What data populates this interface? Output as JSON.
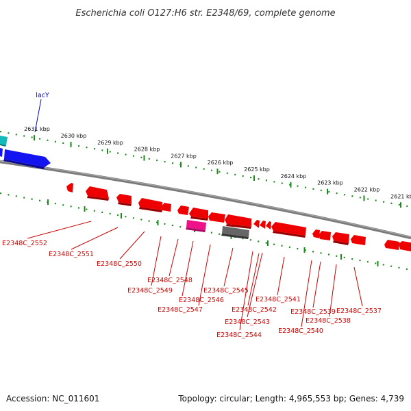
{
  "title": "Escherichia coli O127:H6 str. E2348/69, complete genome",
  "footer": {
    "accession": "Accession: NC_011601",
    "summary": "Topology: circular; Length: 4,965,553 bp; Genes: 4,739"
  },
  "colors": {
    "forward_gene": "#1010ee",
    "reverse_gene": "#ee0000",
    "rna_gene": "#ee1188",
    "pseudo_gene": "#555555",
    "other_gene": "#11bbbb",
    "tick": "#1a8a1a",
    "backbone": "#808080",
    "label_forward": "#0000cc",
    "label_reverse": "#cc0000"
  },
  "ruler": {
    "unit": "kbp",
    "ticks": [
      {
        "kbp": 2631,
        "label": "2631 kbp"
      },
      {
        "kbp": 2630,
        "label": "2630 kbp"
      },
      {
        "kbp": 2629,
        "label": "2629 kbp"
      },
      {
        "kbp": 2628,
        "label": "2628 kbp"
      },
      {
        "kbp": 2627,
        "label": "2627 kbp"
      },
      {
        "kbp": 2626,
        "label": "2626 kbp"
      },
      {
        "kbp": 2625,
        "label": "2625 kbp"
      },
      {
        "kbp": 2624,
        "label": "2624 kbp"
      },
      {
        "kbp": 2623,
        "label": "2623 kbp"
      },
      {
        "kbp": 2622,
        "label": "2622 kbp"
      },
      {
        "kbp": 2621,
        "label": "2621 kbp"
      }
    ]
  },
  "forward_labels": [
    {
      "text": "lacY"
    }
  ],
  "reverse_labels": [
    {
      "text": "E2348C_2552"
    },
    {
      "text": "E2348C_2551"
    },
    {
      "text": "E2348C_2550"
    },
    {
      "text": "E2348C_2548"
    },
    {
      "text": "E2348C_2549"
    },
    {
      "text": "E2348C_2546"
    },
    {
      "text": "E2348C_2547"
    },
    {
      "text": "E2348C_2545"
    },
    {
      "text": "E2348C_2542"
    },
    {
      "text": "E2348C_2543"
    },
    {
      "text": "E2348C_2544"
    },
    {
      "text": "E2348C_2541"
    },
    {
      "text": "E2348C_2539"
    },
    {
      "text": "E2348C_2540"
    },
    {
      "text": "E2348C_2538"
    },
    {
      "text": "E2348C_2537"
    }
  ]
}
